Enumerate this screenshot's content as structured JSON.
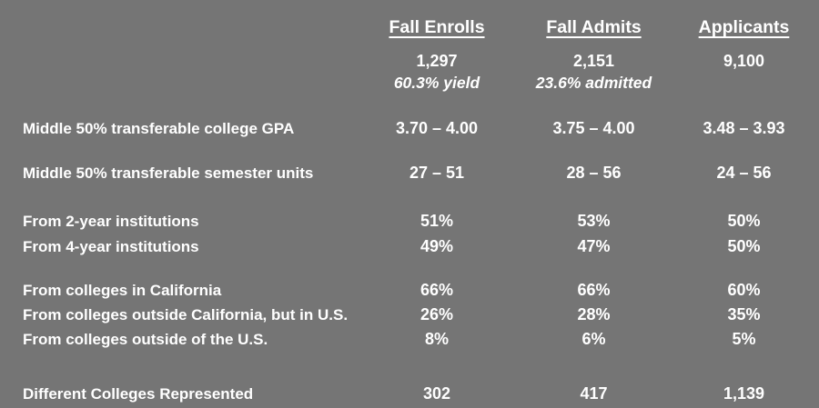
{
  "colors": {
    "background": "#757575",
    "text": "#ffffff"
  },
  "chart_data": {
    "type": "table",
    "columns": [
      "Fall Enrolls",
      "Fall Admits",
      "Applicants"
    ],
    "totals": {
      "values": [
        "1,297",
        "2,151",
        "9,100"
      ],
      "notes": [
        "60.3% yield",
        "23.6% admitted",
        ""
      ]
    },
    "rows": [
      {
        "label": "Middle 50% transferable college GPA",
        "values": [
          "3.70 – 4.00",
          "3.75 – 4.00",
          "3.48 – 3.93"
        ]
      },
      {
        "label": "Middle 50% transferable semester units",
        "values": [
          "27 – 51",
          "28 – 56",
          "24 – 56"
        ]
      },
      {
        "label": "From 2-year institutions",
        "values": [
          "51%",
          "53%",
          "50%"
        ]
      },
      {
        "label": "From 4-year institutions",
        "values": [
          "49%",
          "47%",
          "50%"
        ]
      },
      {
        "label": "From colleges in California",
        "values": [
          "66%",
          "66%",
          "60%"
        ]
      },
      {
        "label": "From colleges outside California, but in U.S.",
        "values": [
          "26%",
          "28%",
          "35%"
        ]
      },
      {
        "label": "From colleges outside of the U.S.",
        "values": [
          "8%",
          "6%",
          "5%"
        ]
      },
      {
        "label": "Different Colleges Represented",
        "values": [
          "302",
          "417",
          "1,139"
        ]
      }
    ]
  }
}
